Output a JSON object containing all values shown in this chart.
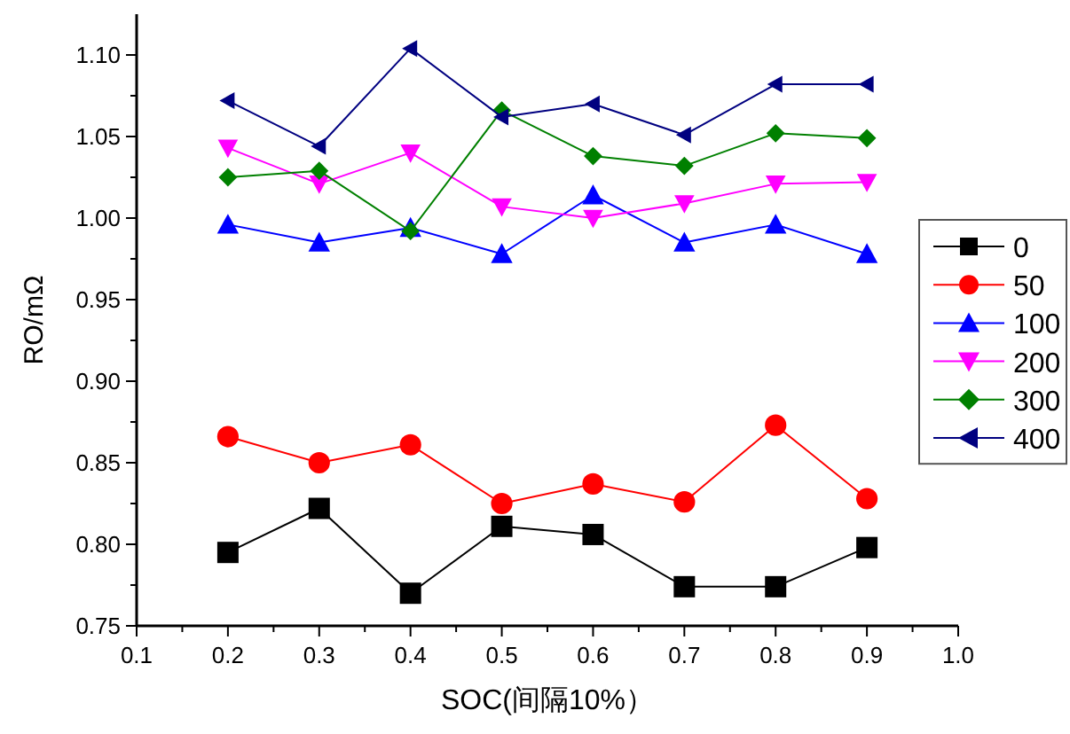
{
  "chart_data": {
    "type": "line",
    "xlabel": "SOC(间隔10%）",
    "ylabel": "RO/mΩ",
    "x": [
      0.2,
      0.3,
      0.4,
      0.5,
      0.6,
      0.7,
      0.8,
      0.9
    ],
    "series": [
      {
        "name": "0",
        "color": "#000000",
        "marker": "square",
        "values": [
          0.795,
          0.822,
          0.77,
          0.811,
          0.806,
          0.774,
          0.774,
          0.798
        ]
      },
      {
        "name": "50",
        "color": "#ff0000",
        "marker": "circle",
        "values": [
          0.866,
          0.85,
          0.861,
          0.825,
          0.837,
          0.826,
          0.873,
          0.828
        ]
      },
      {
        "name": "100",
        "color": "#0000ff",
        "marker": "triangle",
        "values": [
          0.996,
          0.985,
          0.994,
          0.978,
          1.014,
          0.985,
          0.996,
          0.978
        ]
      },
      {
        "name": "200",
        "color": "#ff00ff",
        "marker": "triangle-down",
        "values": [
          1.043,
          1.021,
          1.04,
          1.007,
          1.0,
          1.009,
          1.021,
          1.022
        ]
      },
      {
        "name": "300",
        "color": "#008000",
        "marker": "diamond",
        "values": [
          1.025,
          1.029,
          0.992,
          1.066,
          1.038,
          1.032,
          1.052,
          1.049
        ]
      },
      {
        "name": "400",
        "color": "#000080",
        "marker": "triangle-left",
        "values": [
          1.072,
          1.044,
          1.104,
          1.062,
          1.07,
          1.051,
          1.082,
          1.082
        ]
      }
    ],
    "xlim": [
      0.1,
      1.0
    ],
    "xticks": [
      0.1,
      0.2,
      0.3,
      0.4,
      0.5,
      0.6,
      0.7,
      0.8,
      0.9,
      {
        "value": 1.0,
        "label": "1.0"
      }
    ],
    "ylim": [
      0.75,
      1.125
    ],
    "yticks": [
      0.75,
      {
        "value": 0.8,
        "label": "0.80"
      },
      0.85,
      {
        "value": 0.9,
        "label": "0.90"
      },
      0.95,
      {
        "value": 1.0,
        "label": "1.00"
      },
      1.05,
      {
        "value": 1.1,
        "label": "1.10"
      }
    ],
    "grid": false,
    "legend": "right",
    "line_style": "solid"
  }
}
